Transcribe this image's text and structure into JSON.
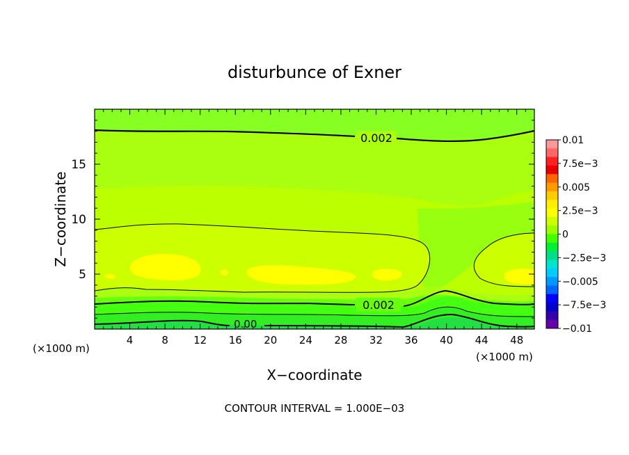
{
  "chart_data": {
    "type": "heatmap",
    "title": "disturbunce of Exner",
    "xlabel": "X−coordinate",
    "ylabel": "Z−coordinate",
    "x_unit": "(×1000 m)",
    "x_unit_right": "(×1000 m)",
    "footer": "CONTOUR INTERVAL = 1.000E−03",
    "xlim": [
      0,
      50
    ],
    "ylim": [
      0,
      20
    ],
    "xticks": [
      4,
      8,
      12,
      16,
      20,
      24,
      28,
      32,
      36,
      40,
      44,
      48
    ],
    "yticks": [
      5,
      10,
      15
    ],
    "colorbar": {
      "labels": [
        "0.01",
        "7.5e−3",
        "0.005",
        "2.5e−3",
        "0",
        "−2.5e−3",
        "−0.005",
        "−7.5e−3",
        "−0.01"
      ],
      "colors": [
        "#ff9999",
        "#ff6666",
        "#ff2020",
        "#e80000",
        "#ff6600",
        "#ff9900",
        "#ffcc00",
        "#ffee00",
        "#ffff00",
        "#ccff00",
        "#99ff00",
        "#44ff00",
        "#00ee33",
        "#00dd88",
        "#00e5cc",
        "#00ccff",
        "#0099ff",
        "#0066ff",
        "#0000ff",
        "#0000cc",
        "#3300aa",
        "#6600aa"
      ]
    },
    "contour_labels": [
      {
        "text": "0.002",
        "x": 30,
        "z": 17.2
      },
      {
        "text": "0.002",
        "x": 30,
        "z": 2.2
      },
      {
        "text": "0.00",
        "x": 17.5,
        "z": 0.4
      }
    ]
  }
}
